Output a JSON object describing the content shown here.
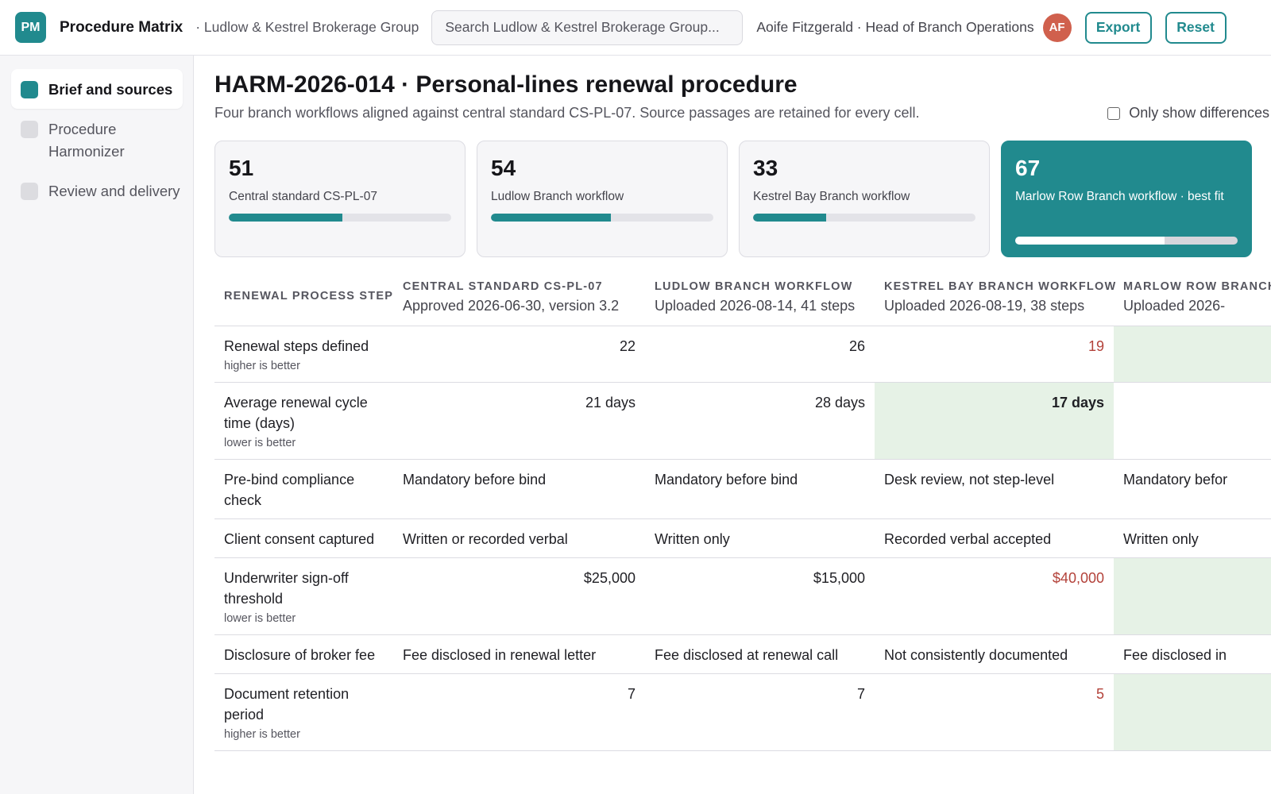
{
  "app": {
    "logo_text": "PM",
    "title": "Procedure Matrix",
    "org": "· Ludlow & Kestrel Brokerage Group",
    "search_placeholder": "Search Ludlow & Kestrel Brokerage Group...",
    "user": "Aoife Fitzgerald · Head of Branch Operations",
    "avatar_initials": "AF",
    "export_label": "Export",
    "reset_label": "Reset",
    "accent_color": "#218a8e"
  },
  "sidebar": {
    "items": [
      {
        "label": "Brief and sources",
        "active": true
      },
      {
        "label": "Procedure Harmonizer",
        "active": false
      },
      {
        "label": "Review and delivery",
        "active": false
      }
    ]
  },
  "main": {
    "title": "HARM-2026-014 · Personal-lines renewal procedure",
    "subtitle": "Four branch workflows aligned against central standard CS-PL-07. Source passages are retained for every cell.",
    "diff_toggle_label": "Only show differences",
    "diff_toggle_checked": false
  },
  "cards": [
    {
      "value": "51",
      "label": "Central standard CS-PL-07",
      "score": 0.51,
      "best": false
    },
    {
      "value": "54",
      "label": "Ludlow Branch workflow",
      "score": 0.54,
      "best": false
    },
    {
      "value": "33",
      "label": "Kestrel Bay Branch workflow",
      "score": 0.33,
      "best": false
    },
    {
      "value": "67",
      "label": "Marlow Row Branch workflow · best fit",
      "score": 0.67,
      "best": true
    }
  ],
  "table": {
    "first_header": "RENEWAL PROCESS STEP",
    "columns": [
      {
        "title": "CENTRAL STANDARD CS-PL-07",
        "sub": "Approved 2026-06-30, version 3.2"
      },
      {
        "title": "LUDLOW BRANCH WORKFLOW",
        "sub": "Uploaded 2026-08-14, 41 steps"
      },
      {
        "title": "KESTREL BAY BRANCH WORKFLOW",
        "sub": "Uploaded 2026-08-19, 38 steps"
      },
      {
        "title": "MARLOW ROW BRANCH WORKFLOW",
        "sub": "Uploaded 2026-"
      }
    ],
    "rows": [
      {
        "step": "Renewal steps defined",
        "hint": "higher is better",
        "numeric": true,
        "cells": [
          {
            "text": "22"
          },
          {
            "text": "26"
          },
          {
            "text": "19",
            "state": "worse"
          },
          {
            "text": "",
            "state": "best-empty"
          }
        ]
      },
      {
        "step": "Average renewal cycle time (days)",
        "hint": "lower is better",
        "numeric": true,
        "cells": [
          {
            "text": "21 days"
          },
          {
            "text": "28 days"
          },
          {
            "text": "17 days",
            "state": "best"
          },
          {
            "text": ""
          }
        ]
      },
      {
        "step": "Pre-bind compliance check",
        "hint": "",
        "numeric": false,
        "cells": [
          {
            "text": "Mandatory before bind"
          },
          {
            "text": "Mandatory before bind"
          },
          {
            "text": "Desk review, not step-level"
          },
          {
            "text": "Mandatory befor"
          }
        ]
      },
      {
        "step": "Client consent captured",
        "hint": "",
        "numeric": false,
        "cells": [
          {
            "text": "Written or recorded verbal"
          },
          {
            "text": "Written only"
          },
          {
            "text": "Recorded verbal accepted"
          },
          {
            "text": "Written only"
          }
        ]
      },
      {
        "step": "Underwriter sign-off threshold",
        "hint": "lower is better",
        "numeric": true,
        "cells": [
          {
            "text": "$25,000"
          },
          {
            "text": "$15,000"
          },
          {
            "text": "$40,000",
            "state": "worse"
          },
          {
            "text": "",
            "state": "best-empty"
          }
        ]
      },
      {
        "step": "Disclosure of broker fee",
        "hint": "",
        "numeric": false,
        "cells": [
          {
            "text": "Fee disclosed in renewal letter"
          },
          {
            "text": "Fee disclosed at renewal call"
          },
          {
            "text": "Not consistently documented"
          },
          {
            "text": "Fee disclosed in"
          }
        ]
      },
      {
        "step": "Document retention period",
        "hint": "higher is better",
        "numeric": true,
        "cells": [
          {
            "text": "7"
          },
          {
            "text": "7"
          },
          {
            "text": "5",
            "state": "worse"
          },
          {
            "text": "",
            "state": "best-empty"
          }
        ]
      }
    ]
  }
}
